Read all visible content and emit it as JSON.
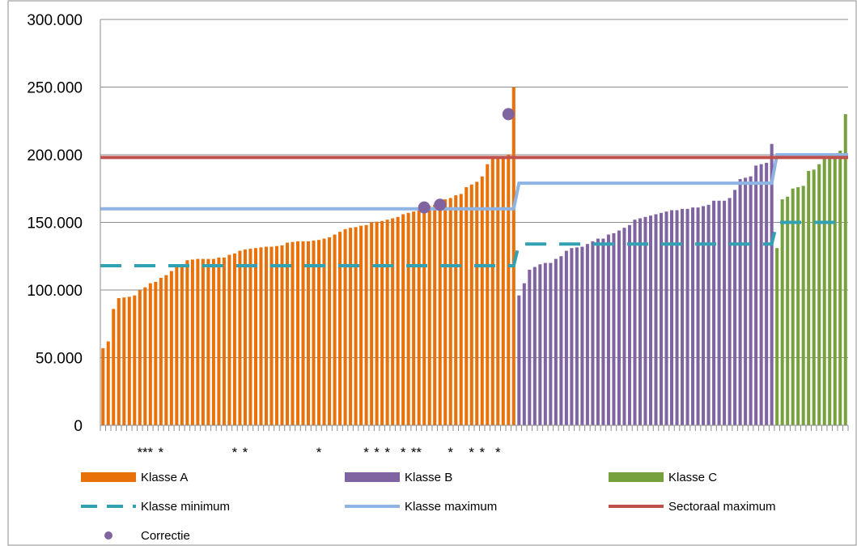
{
  "chart_data": {
    "type": "bar",
    "title": "",
    "xlabel": "",
    "ylabel": "",
    "ylim": [
      0,
      300000
    ],
    "y_ticks": [
      {
        "value": 0,
        "label": "0"
      },
      {
        "value": 50000,
        "label": "50.000"
      },
      {
        "value": 100000,
        "label": "100.000"
      },
      {
        "value": 150000,
        "label": "150.000"
      },
      {
        "value": 200000,
        "label": "200.000"
      },
      {
        "value": 250000,
        "label": "250.000"
      },
      {
        "value": 300000,
        "label": "300.000"
      }
    ],
    "grid": true,
    "legend_position": "bottom",
    "series": [
      {
        "name": "Klasse A",
        "color": "#E8710A",
        "values": [
          57000,
          62000,
          86000,
          94000,
          94500,
          95000,
          96000,
          100000,
          102000,
          105000,
          106000,
          109000,
          111000,
          114000,
          117000,
          119000,
          122000,
          122500,
          123000,
          123000,
          123000,
          123000,
          124000,
          124000,
          126000,
          127000,
          129000,
          130000,
          130500,
          131000,
          131500,
          132000,
          132000,
          132500,
          133000,
          135000,
          135500,
          136000,
          136000,
          136000,
          136500,
          137000,
          138000,
          139000,
          141000,
          143000,
          145000,
          146000,
          146500,
          147500,
          148000,
          150000,
          150500,
          151000,
          152000,
          153000,
          154000,
          156000,
          157000,
          158000,
          159000,
          161000,
          162000,
          163000,
          165000,
          167000,
          168000,
          170000,
          171000,
          176000,
          178000,
          180000,
          184000,
          193000,
          197000,
          198000,
          199000,
          200000,
          250000
        ]
      },
      {
        "name": "Klasse B",
        "color": "#8064A2",
        "values": [
          96000,
          105000,
          115000,
          117000,
          119000,
          120000,
          120000,
          123000,
          125000,
          129000,
          131000,
          131500,
          132000,
          134000,
          136000,
          138000,
          138000,
          141000,
          142000,
          144000,
          146000,
          148000,
          152000,
          153000,
          154000,
          155000,
          156000,
          157000,
          158000,
          159000,
          159000,
          160000,
          160000,
          161000,
          161000,
          162000,
          163000,
          166000,
          166000,
          166000,
          168000,
          174000,
          182000,
          183000,
          184000,
          192000,
          193000,
          194000,
          208000
        ]
      },
      {
        "name": "Klasse C",
        "color": "#77A13C",
        "values": [
          131000,
          167000,
          169000,
          175000,
          176000,
          177000,
          188000,
          189000,
          193000,
          197000,
          199000,
          200000,
          203000,
          230000
        ]
      },
      {
        "name": "Klasse minimum",
        "color": "#31A1B3",
        "style": "dashed",
        "segments": [
          {
            "class": "A",
            "value": 118000
          },
          {
            "class": "B",
            "value": 134000
          },
          {
            "class": "C",
            "value": 150000
          }
        ]
      },
      {
        "name": "Klasse maximum",
        "color": "#8EB4E3",
        "style": "solid",
        "segments": [
          {
            "class": "A",
            "value": 160000
          },
          {
            "class": "B",
            "value": 179000
          },
          {
            "class": "C",
            "value": 200000
          }
        ]
      },
      {
        "name": "Sectoraal maximum",
        "color": "#C0504D",
        "style": "solid",
        "value": 198000
      },
      {
        "name": "Correctie",
        "color": "#8064A2",
        "points": [
          {
            "bar_index": 61,
            "value": 161000
          },
          {
            "bar_index": 64,
            "value": 163000
          },
          {
            "bar_index": 77,
            "value": 230000
          }
        ]
      }
    ],
    "marker_text": "*",
    "star_positions": [
      7,
      8,
      9,
      11,
      25,
      27,
      41,
      50,
      52,
      54,
      57,
      59,
      60,
      66,
      70,
      72,
      75
    ]
  }
}
